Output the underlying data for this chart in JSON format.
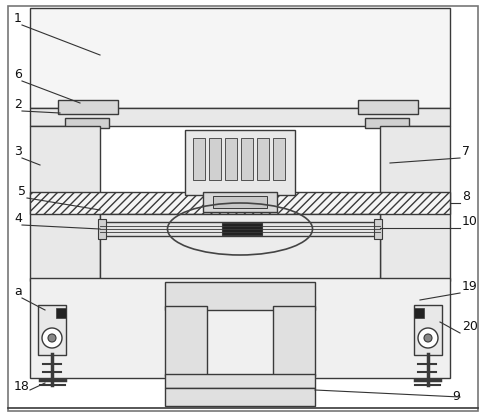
{
  "bg_color": "#ffffff",
  "line_color": "#3a3a3a",
  "fill_light": "#f0f0f0",
  "fill_mid": "#e0e0e0",
  "fill_dark": "#c8c8c8",
  "hatch_color": "#3a3a3a",
  "label_color": "#111111",
  "border_lw": 1.0,
  "fig_w": 4.86,
  "fig_h": 4.17,
  "dpi": 100
}
